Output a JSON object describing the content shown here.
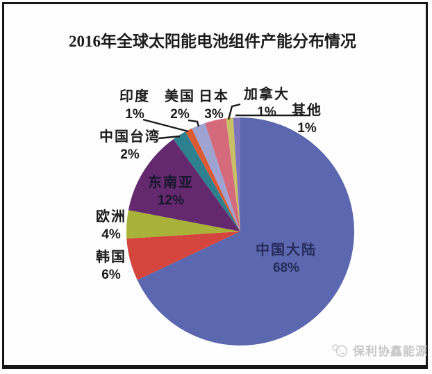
{
  "title": "2016年全球太阳能电池组件产能分布情况",
  "watermark": {
    "text": "保利协鑫能源",
    "icon": "gcl-logo-icon",
    "color": "#c7c7c7"
  },
  "chart_data": {
    "type": "pie",
    "title": "2016年全球太阳能电池组件产能分布情况",
    "unit": "%",
    "direction": "clockwise",
    "start_angle_deg": 0,
    "legend": "none",
    "categories": [
      "中国大陆",
      "韩国",
      "欧洲",
      "东南亚",
      "中国台湾",
      "印度",
      "美国",
      "日本",
      "加拿大",
      "其他"
    ],
    "values": [
      68,
      6,
      4,
      12,
      2,
      1,
      2,
      3,
      1,
      1
    ],
    "colors": [
      "#5b67ae",
      "#d4453e",
      "#a9b238",
      "#63286e",
      "#2f808f",
      "#dc5a33",
      "#9fa3d1",
      "#d66a7d",
      "#c8bf66",
      "#7d74bc"
    ],
    "label_format": "{category} {value}%",
    "inside_labels": [
      "中国大陆",
      "东南亚"
    ]
  }
}
